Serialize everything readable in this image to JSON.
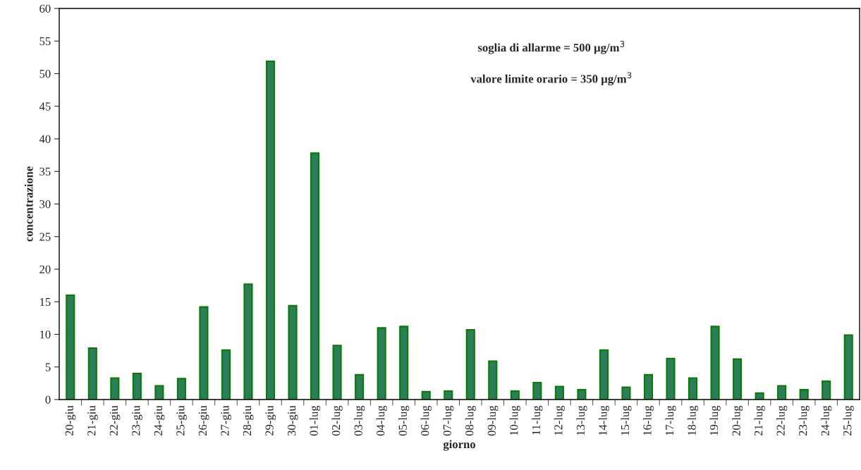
{
  "chart_data": {
    "type": "bar",
    "xlabel": "giorno",
    "ylabel": "concentrazione",
    "annotations": [
      "soglia di allarme = 500 µg/m$^{3}$",
      "valore limite orario = 350 µg/m$^{3}$"
    ],
    "categories": [
      "20-giu",
      "21-giu",
      "22-giu",
      "23-giu",
      "24-giu",
      "25-giu",
      "26-giu",
      "27-giu",
      "28-giu",
      "29-giu",
      "30-giu",
      "01-lug",
      "02-lug",
      "03-lug",
      "04-lug",
      "05-lug",
      "06-lug",
      "07-lug",
      "08-lug",
      "09-lug",
      "10-lug",
      "11-lug",
      "12-lug",
      "13-lug",
      "14-lug",
      "15-lug",
      "16-lug",
      "17-lug",
      "18-lug",
      "19-lug",
      "20-lug",
      "21-lug",
      "22-lug",
      "23-lug",
      "24-lug",
      "25-lug"
    ],
    "values": [
      16.0,
      7.9,
      3.3,
      4.0,
      2.1,
      3.2,
      14.2,
      7.6,
      17.7,
      51.9,
      14.4,
      37.8,
      8.3,
      3.8,
      11.0,
      11.2,
      1.2,
      1.3,
      10.7,
      5.9,
      1.3,
      2.6,
      2.0,
      1.5,
      7.6,
      1.9,
      3.8,
      6.3,
      3.3,
      11.2,
      6.2,
      1.0,
      2.1,
      1.5,
      2.8,
      9.9
    ],
    "color": "#2e7d5a",
    "ylim": [
      0,
      60
    ],
    "yticks": [
      0,
      5,
      10,
      15,
      20,
      25,
      30,
      35,
      40,
      45,
      50,
      55,
      60
    ],
    "grid": false
  }
}
